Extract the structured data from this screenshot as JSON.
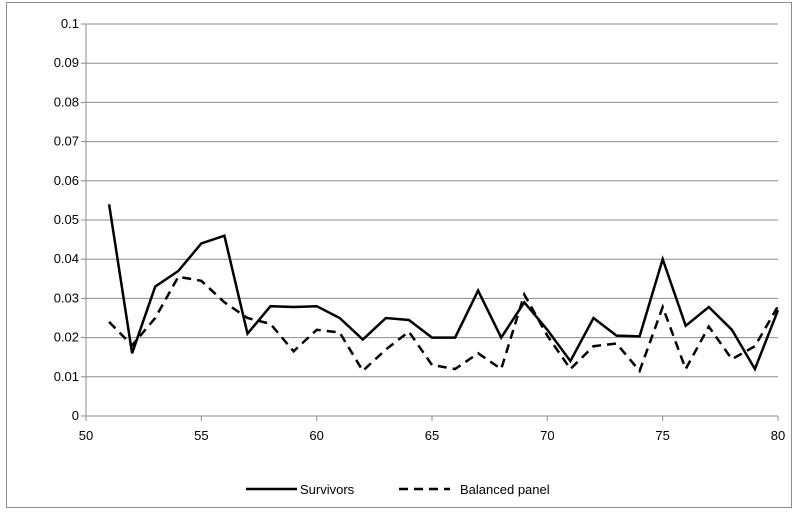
{
  "chart_data": {
    "type": "line",
    "title": "",
    "xlabel": "",
    "ylabel": "",
    "xlim": [
      50,
      80
    ],
    "ylim": [
      0,
      0.1
    ],
    "x_ticks": [
      50,
      55,
      60,
      65,
      70,
      75,
      80
    ],
    "y_ticks": [
      0,
      0.01,
      0.02,
      0.03,
      0.04,
      0.05,
      0.06,
      0.07,
      0.08,
      0.09,
      0.1
    ],
    "x_tick_labels": [
      "50",
      "55",
      "60",
      "65",
      "70",
      "75",
      "80"
    ],
    "y_tick_labels": [
      "0",
      "0.01",
      "0.02",
      "0.03",
      "0.04",
      "0.05",
      "0.06",
      "0.07",
      "0.08",
      "0.09",
      "0.1"
    ],
    "grid": "horizontal",
    "legend_position": "bottom",
    "colors": {
      "line": "#000000",
      "grid": "#8c8c8c",
      "axis": "#8c8c8c"
    },
    "x": [
      51,
      52,
      53,
      54,
      55,
      56,
      57,
      58,
      59,
      60,
      61,
      62,
      63,
      64,
      65,
      66,
      67,
      68,
      69,
      70,
      71,
      72,
      73,
      74,
      75,
      76,
      77,
      78,
      79,
      80
    ],
    "series": [
      {
        "name": "Survivors",
        "style": "solid",
        "values": [
          0.054,
          0.016,
          0.033,
          0.037,
          0.044,
          0.046,
          0.021,
          0.028,
          0.0278,
          0.028,
          0.025,
          0.0195,
          0.025,
          0.0245,
          0.02,
          0.02,
          0.032,
          0.02,
          0.029,
          0.022,
          0.014,
          0.025,
          0.0205,
          0.0203,
          0.04,
          0.023,
          0.0278,
          0.022,
          0.012,
          0.027
        ]
      },
      {
        "name": "Balanced panel",
        "style": "dashed",
        "values": [
          0.024,
          0.018,
          0.025,
          0.0355,
          0.0345,
          0.029,
          0.025,
          0.0235,
          0.0165,
          0.022,
          0.0213,
          0.0115,
          0.017,
          0.0215,
          0.013,
          0.012,
          0.016,
          0.012,
          0.031,
          0.0205,
          0.012,
          0.0178,
          0.0185,
          0.0115,
          0.0278,
          0.012,
          0.0228,
          0.0145,
          0.0178,
          0.028
        ]
      }
    ]
  }
}
